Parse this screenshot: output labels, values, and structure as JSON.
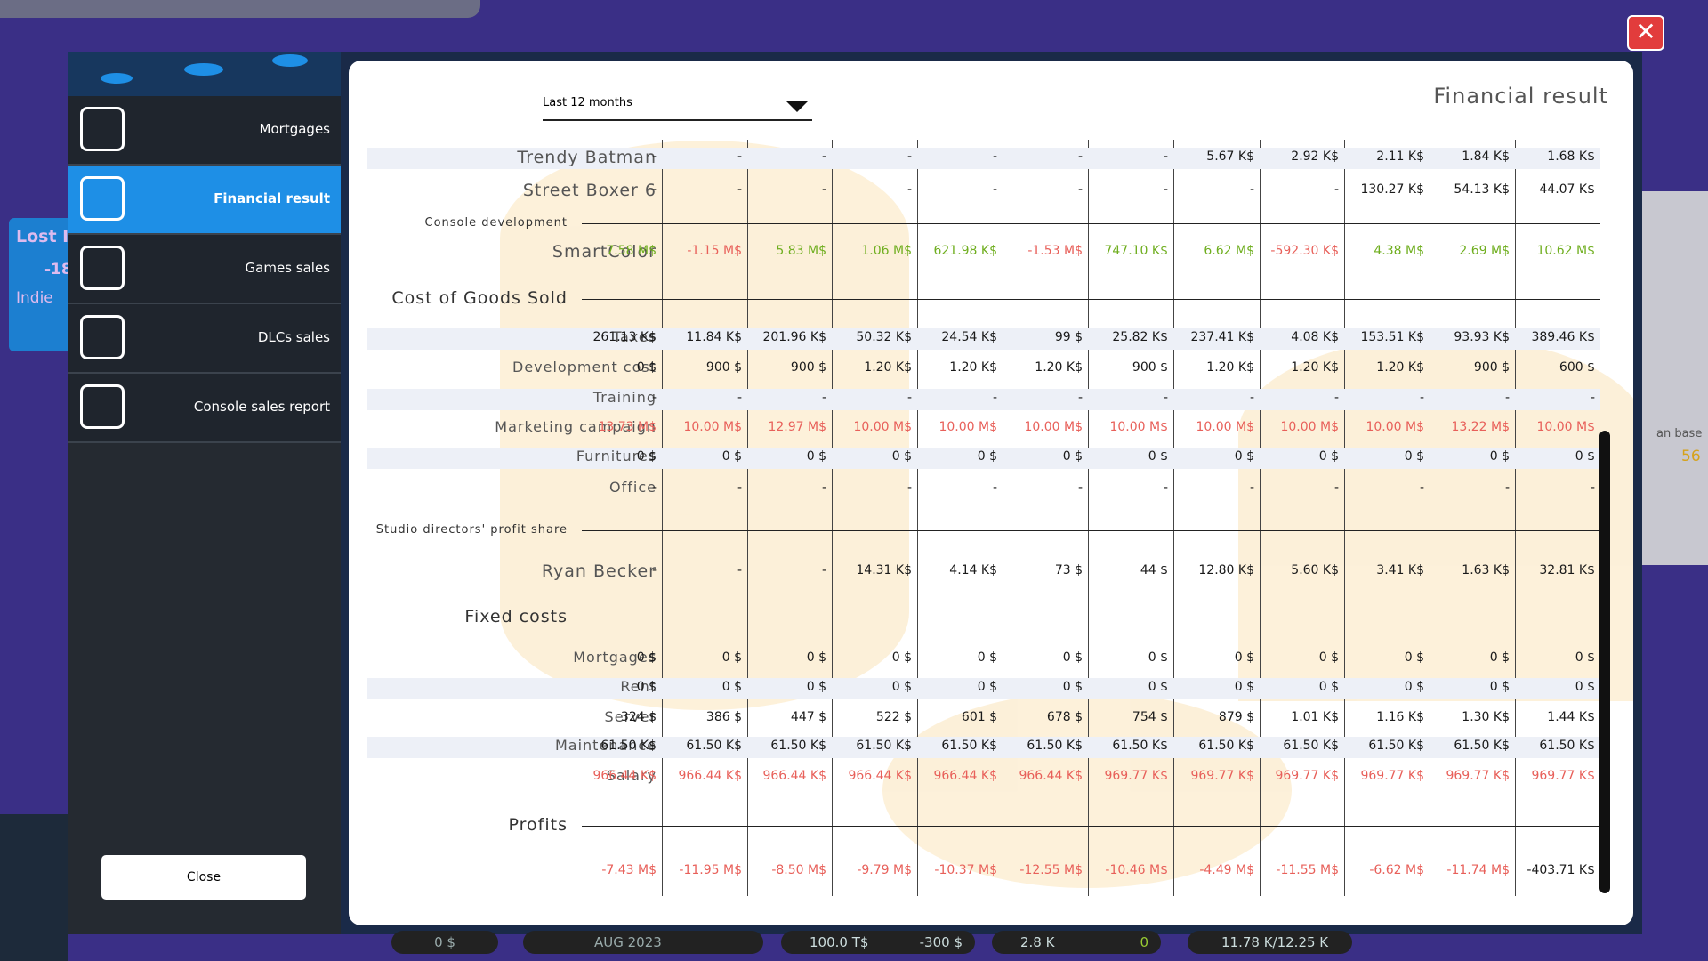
{
  "sidebar": {
    "items": [
      "Mortgages",
      "Financial result",
      "Games sales",
      "DLCs sales",
      "Console sales report"
    ],
    "close": "Close"
  },
  "header": {
    "period": "Last 12 months",
    "title": "Financial result"
  },
  "background": {
    "card_title": "Lost I",
    "card_value": "-18",
    "card_genre": "Indie",
    "right_label": "an base",
    "right_value": "56"
  },
  "hud": {
    "cash": "0 $",
    "date": "AUG 2023",
    "money": "100.0 T$",
    "balance": "-300 $",
    "fans": "2.8 K",
    "fans_delta": "0",
    "capacity": "11.78 K/12.25 K"
  },
  "table": {
    "items": [
      {
        "label": "Trendy Batman",
        "cells": [
          "-",
          "-",
          "-",
          "-",
          "-",
          "-",
          "-",
          "5.67 K$",
          "2.92 K$",
          "2.11 K$",
          "1.84 K$",
          "1.68 K$"
        ],
        "color": "#1a1a1a"
      },
      {
        "label": "Street Boxer 6",
        "cells": [
          "-",
          "-",
          "-",
          "-",
          "-",
          "-",
          "-",
          "-",
          "-",
          "130.27 K$",
          "54.13 K$",
          "44.07 K$"
        ],
        "color": "#1a1a1a"
      },
      {
        "section": "Console development"
      },
      {
        "label": "SmartColor",
        "cells": [
          "7.58 M$",
          "-1.15 M$",
          "5.83 M$",
          "1.06 M$",
          "621.98 K$",
          "-1.53 M$",
          "747.10 K$",
          "6.62 M$",
          "-592.30 K$",
          "4.38 M$",
          "2.69 M$",
          "10.62 M$"
        ],
        "color": [
          "#6fae1f",
          "#e8605a",
          "#6fae1f",
          "#6fae1f",
          "#6fae1f",
          "#e8605a",
          "#6fae1f",
          "#6fae1f",
          "#e8605a",
          "#6fae1f",
          "#6fae1f",
          "#6fae1f"
        ]
      },
      {
        "section": "Cost of Goods Sold"
      },
      {
        "label": "Taxes",
        "cells": [
          "261.13 K$",
          "11.84 K$",
          "201.96 K$",
          "50.32 K$",
          "24.54 K$",
          "99 $",
          "25.82 K$",
          "237.41 K$",
          "4.08 K$",
          "153.51 K$",
          "93.93 K$",
          "389.46 K$"
        ],
        "color": "#1a1a1a"
      },
      {
        "label": "Development cost",
        "cells": [
          "0 $",
          "900 $",
          "900 $",
          "1.20 K$",
          "1.20 K$",
          "1.20 K$",
          "900 $",
          "1.20 K$",
          "1.20 K$",
          "1.20 K$",
          "900 $",
          "600 $"
        ],
        "color": "#1a1a1a"
      },
      {
        "label": "Training",
        "cells": [
          "-",
          "-",
          "-",
          "-",
          "-",
          "-",
          "-",
          "-",
          "-",
          "-",
          "-",
          "-"
        ],
        "color": "#1a1a1a"
      },
      {
        "label": "Marketing campaign",
        "cells": [
          "13.73 M$",
          "10.00 M$",
          "12.97 M$",
          "10.00 M$",
          "10.00 M$",
          "10.00 M$",
          "10.00 M$",
          "10.00 M$",
          "10.00 M$",
          "10.00 M$",
          "13.22 M$",
          "10.00 M$"
        ],
        "color": "#e8605a"
      },
      {
        "label": "Furnitures",
        "cells": [
          "0 $",
          "0 $",
          "0 $",
          "0 $",
          "0 $",
          "0 $",
          "0 $",
          "0 $",
          "0 $",
          "0 $",
          "0 $",
          "0 $"
        ],
        "color": "#1a1a1a"
      },
      {
        "label": "Office",
        "cells": [
          "-",
          "-",
          "-",
          "-",
          "-",
          "-",
          "-",
          "-",
          "-",
          "-",
          "-",
          "-"
        ],
        "color": "#1a1a1a"
      },
      {
        "section": "Studio directors' profit share"
      },
      {
        "label": "Ryan Becker",
        "cells": [
          "-",
          "-",
          "-",
          "14.31 K$",
          "4.14 K$",
          "73 $",
          "44 $",
          "12.80 K$",
          "5.60 K$",
          "3.41 K$",
          "1.63 K$",
          "32.81 K$"
        ],
        "color": "#1a1a1a"
      },
      {
        "section": "Fixed costs"
      },
      {
        "label": "Mortgages",
        "cells": [
          "0 $",
          "0 $",
          "0 $",
          "0 $",
          "0 $",
          "0 $",
          "0 $",
          "0 $",
          "0 $",
          "0 $",
          "0 $",
          "0 $"
        ],
        "color": "#1a1a1a"
      },
      {
        "label": "Rent",
        "cells": [
          "0 $",
          "0 $",
          "0 $",
          "0 $",
          "0 $",
          "0 $",
          "0 $",
          "0 $",
          "0 $",
          "0 $",
          "0 $",
          "0 $"
        ],
        "color": "#1a1a1a"
      },
      {
        "label": "Server",
        "cells": [
          "324 $",
          "386 $",
          "447 $",
          "522 $",
          "601 $",
          "678 $",
          "754 $",
          "879 $",
          "1.01 K$",
          "1.16 K$",
          "1.30 K$",
          "1.44 K$"
        ],
        "color": "#1a1a1a"
      },
      {
        "label": "Maintenance",
        "cells": [
          "61.50 K$",
          "61.50 K$",
          "61.50 K$",
          "61.50 K$",
          "61.50 K$",
          "61.50 K$",
          "61.50 K$",
          "61.50 K$",
          "61.50 K$",
          "61.50 K$",
          "61.50 K$",
          "61.50 K$"
        ],
        "color": "#1a1a1a"
      },
      {
        "label": "Salary",
        "cells": [
          "966.44 K$",
          "966.44 K$",
          "966.44 K$",
          "966.44 K$",
          "966.44 K$",
          "966.44 K$",
          "969.77 K$",
          "969.77 K$",
          "969.77 K$",
          "969.77 K$",
          "969.77 K$",
          "969.77 K$"
        ],
        "color": "#e8605a"
      },
      {
        "section": "Profits"
      },
      {
        "cells": [
          "-7.43 M$",
          "-11.95 M$",
          "-8.50 M$",
          "-9.79 M$",
          "-10.37 M$",
          "-12.55 M$",
          "-10.46 M$",
          "-4.49 M$",
          "-11.55 M$",
          "-6.62 M$",
          "-11.74 M$",
          "-403.71 K$"
        ],
        "color": [
          "#e8605a",
          "#e8605a",
          "#e8605a",
          "#e8605a",
          "#e8605a",
          "#e8605a",
          "#e8605a",
          "#e8605a",
          "#e8605a",
          "#e8605a",
          "#e8605a",
          "#1a1a1a"
        ]
      }
    ]
  }
}
